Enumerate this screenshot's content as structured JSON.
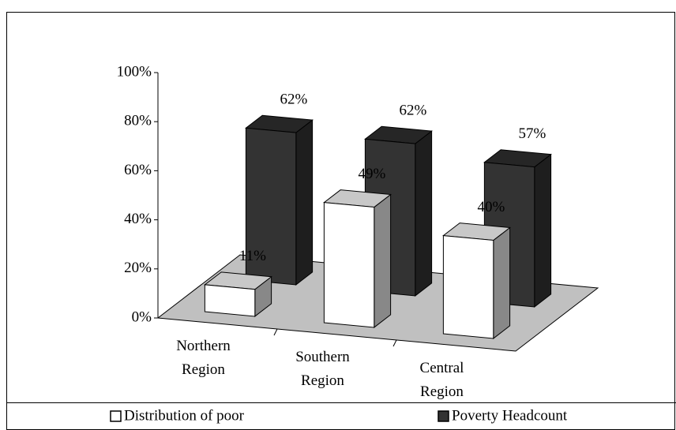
{
  "chart_data": {
    "type": "bar3d",
    "categories": [
      "Northern Region",
      "Southern Region",
      "Central Region"
    ],
    "series": [
      {
        "name": "Distribution of poor",
        "color": "#ffffff",
        "values": [
          11,
          49,
          40
        ],
        "value_labels": [
          "11%",
          "49%",
          "40%"
        ]
      },
      {
        "name": "Poverty Headcount",
        "color": "#333333",
        "values": [
          62,
          62,
          57
        ],
        "value_labels": [
          "62%",
          "62%",
          "57%"
        ]
      }
    ],
    "ylim": [
      0,
      100
    ],
    "yticks": [
      {
        "value": 0,
        "label": "0%"
      },
      {
        "value": 20,
        "label": "20%"
      },
      {
        "value": 40,
        "label": "40%"
      },
      {
        "value": 60,
        "label": "60%"
      },
      {
        "value": 80,
        "label": "80%"
      },
      {
        "value": 100,
        "label": "100%"
      }
    ],
    "legend": "bottom"
  }
}
